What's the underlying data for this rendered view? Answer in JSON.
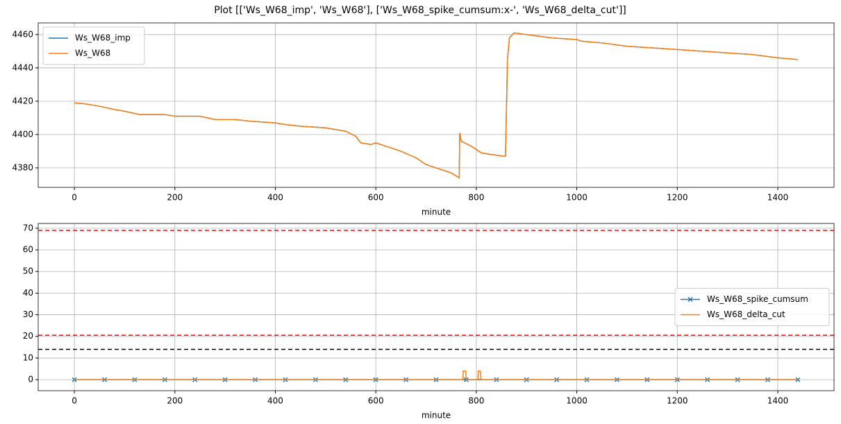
{
  "title": "Plot [['Ws_W68_imp', 'Ws_W68'], ['Ws_W68_spike_cumsum:x-', 'Ws_W68_delta_cut']]",
  "chart_data": [
    {
      "type": "line",
      "x_label": "minute",
      "grid": true,
      "legend": "upper left",
      "xlim": [
        -72,
        1512
      ],
      "xticks": [
        0,
        200,
        400,
        600,
        800,
        1000,
        1200,
        1400
      ],
      "ylim": [
        4368.3,
        4467
      ],
      "yticks": [
        4380,
        4400,
        4420,
        4440,
        4460
      ],
      "x": [
        0,
        20,
        50,
        80,
        100,
        130,
        180,
        200,
        250,
        280,
        320,
        350,
        400,
        420,
        450,
        500,
        540,
        560,
        570,
        590,
        600,
        620,
        650,
        680,
        700,
        730,
        750,
        766,
        767,
        770,
        790,
        810,
        830,
        855,
        858,
        862,
        866,
        875,
        900,
        950,
        1000,
        1010,
        1050,
        1100,
        1150,
        1200,
        1250,
        1300,
        1350,
        1400,
        1440
      ],
      "series": [
        {
          "name": "Ws_W68_imp",
          "color": "#1f77b4",
          "values": [
            4419,
            4418.5,
            4417,
            4415,
            4414,
            4412,
            4412,
            4411,
            4411,
            4409,
            4409,
            4408,
            4407,
            4406,
            4405,
            4404,
            4402,
            4399,
            4395,
            4394,
            4395,
            4393,
            4390,
            4386,
            4382,
            4379,
            4377,
            4374,
            4401,
            4396,
            4393,
            4389,
            4388,
            4387,
            4387,
            4445,
            4458,
            4461,
            4460,
            4458,
            4457,
            4456,
            4455,
            4453,
            4452,
            4451,
            4450,
            4449,
            4448,
            4446,
            4445
          ]
        },
        {
          "name": "Ws_W68",
          "color": "#ff7f0e",
          "values": [
            4419,
            4418.5,
            4417,
            4415,
            4414,
            4412,
            4412,
            4411,
            4411,
            4409,
            4409,
            4408,
            4407,
            4406,
            4405,
            4404,
            4402,
            4399,
            4395,
            4394,
            4395,
            4393,
            4390,
            4386,
            4382,
            4379,
            4377,
            4374,
            4401,
            4396,
            4393,
            4389,
            4388,
            4387,
            4387,
            4445,
            4458,
            4461,
            4460,
            4458,
            4457,
            4456,
            4455,
            4453,
            4452,
            4451,
            4450,
            4449,
            4448,
            4446,
            4445
          ]
        }
      ]
    },
    {
      "type": "line",
      "x_label": "minute",
      "grid": true,
      "legend": "center right",
      "xlim": [
        -72,
        1512
      ],
      "xticks": [
        0,
        200,
        400,
        600,
        800,
        1000,
        1200,
        1400
      ],
      "ylim": [
        -5.1,
        72.2
      ],
      "yticks": [
        0,
        10,
        20,
        30,
        40,
        50,
        60,
        70
      ],
      "hlines": [
        {
          "value": 69,
          "color": "#ff0000"
        },
        {
          "value": 20.5,
          "color": "#ff0000"
        },
        {
          "value": 14,
          "color": "#000000"
        }
      ],
      "series": [
        {
          "name": "Ws_W68_spike_cumsum",
          "color": "#1f77b4",
          "marker": "x",
          "x": [
            0,
            60,
            120,
            180,
            240,
            300,
            360,
            420,
            480,
            540,
            600,
            660,
            720,
            780,
            840,
            900,
            960,
            1020,
            1080,
            1140,
            1200,
            1260,
            1320,
            1380,
            1440
          ],
          "values": [
            0,
            0,
            0,
            0,
            0,
            0,
            0,
            0,
            0,
            0,
            0,
            0,
            0,
            0,
            0,
            0,
            0,
            0,
            0,
            0,
            0,
            0,
            0,
            0,
            0
          ]
        },
        {
          "name": "Ws_W68_delta_cut",
          "color": "#ff7f0e",
          "x": [
            0,
            773,
            774,
            779,
            780,
            803,
            804,
            808,
            809,
            1440
          ],
          "values": [
            0,
            0,
            4,
            4,
            0,
            0,
            4,
            4,
            0,
            0
          ]
        }
      ]
    }
  ]
}
